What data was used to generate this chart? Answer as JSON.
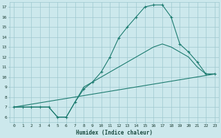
{
  "xlabel": "Humidex (Indice chaleur)",
  "bg_color": "#cce8ec",
  "grid_color": "#9dc8ce",
  "line_color": "#1a7a6e",
  "xlim": [
    -0.5,
    23.5
  ],
  "ylim": [
    5.5,
    17.5
  ],
  "xticks": [
    0,
    1,
    2,
    3,
    4,
    5,
    6,
    7,
    8,
    9,
    10,
    11,
    12,
    13,
    14,
    15,
    16,
    17,
    18,
    19,
    20,
    21,
    22,
    23
  ],
  "yticks": [
    6,
    7,
    8,
    9,
    10,
    11,
    12,
    13,
    14,
    15,
    16,
    17
  ],
  "line1_x": [
    0,
    1,
    2,
    3,
    4,
    5,
    6,
    7,
    8,
    9,
    10,
    11,
    12,
    13,
    14,
    15,
    16,
    17,
    18,
    19,
    20,
    21,
    22,
    23
  ],
  "line1_y": [
    7,
    7,
    7,
    7,
    7,
    6,
    6,
    7.5,
    8.8,
    9.5,
    10.5,
    12,
    13.9,
    15,
    16,
    17,
    17.2,
    17.2,
    16,
    13.3,
    12.5,
    11.5,
    10.3,
    10.3
  ],
  "line2_x": [
    0,
    23
  ],
  "line2_y": [
    7.0,
    10.3
  ],
  "line3_x": [
    0,
    1,
    2,
    3,
    4,
    5,
    6,
    7,
    8,
    9,
    10,
    11,
    12,
    13,
    14,
    15,
    16,
    17,
    18,
    19,
    20,
    21,
    22,
    23
  ],
  "line3_y": [
    7,
    7,
    7,
    7,
    7,
    6,
    6,
    7.5,
    9,
    9.5,
    10,
    10.5,
    11,
    11.5,
    12,
    12.5,
    13,
    13.3,
    13,
    12.5,
    12,
    11,
    10.3,
    10.3
  ]
}
